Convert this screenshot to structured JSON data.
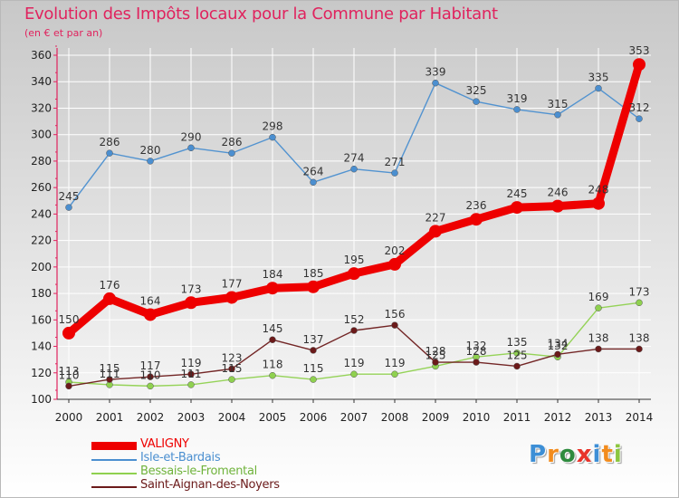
{
  "title": "Evolution des Impôts locaux pour la Commune par Habitant",
  "subtitle": "(en € et par an)",
  "logo": {
    "letters": [
      "P",
      "r",
      "o",
      "x",
      "i",
      "t",
      "i"
    ],
    "colors": [
      "#3d8fd6",
      "#f28c1e",
      "#2e8b3e",
      "#e8332a",
      "#3d8fd6",
      "#f28c1e",
      "#8cc63f"
    ]
  },
  "chart_data": {
    "type": "line",
    "x": [
      "2000",
      "2001",
      "2002",
      "2003",
      "2004",
      "2005",
      "2006",
      "2007",
      "2008",
      "2009",
      "2010",
      "2011",
      "2012",
      "2013",
      "2014"
    ],
    "ylim": [
      100,
      360
    ],
    "yticks": [
      100,
      120,
      140,
      160,
      180,
      200,
      220,
      240,
      260,
      280,
      300,
      320,
      340,
      360
    ],
    "grid": true,
    "legend_position": "bottom-left",
    "series": [
      {
        "name": "Isle-et-Bardais",
        "color": "#4b8fd0",
        "values": [
          245,
          286,
          280,
          290,
          286,
          298,
          264,
          274,
          271,
          339,
          325,
          319,
          315,
          335,
          312
        ]
      },
      {
        "name": "Bessais-le-Fromental",
        "color": "#8fd14f",
        "values": [
          113,
          111,
          110,
          111,
          115,
          118,
          115,
          119,
          119,
          125,
          132,
          135,
          132,
          169,
          173
        ]
      },
      {
        "name": "Saint-Aignan-des-Noyers",
        "color": "#6b1a1a",
        "values": [
          110,
          115,
          117,
          119,
          123,
          145,
          137,
          152,
          156,
          128,
          128,
          125,
          134,
          138,
          138
        ]
      },
      {
        "name": "VALIGNY",
        "color": "#ee0000",
        "values": [
          150,
          176,
          164,
          173,
          177,
          184,
          185,
          195,
          202,
          227,
          236,
          245,
          246,
          248,
          353
        ]
      }
    ]
  }
}
